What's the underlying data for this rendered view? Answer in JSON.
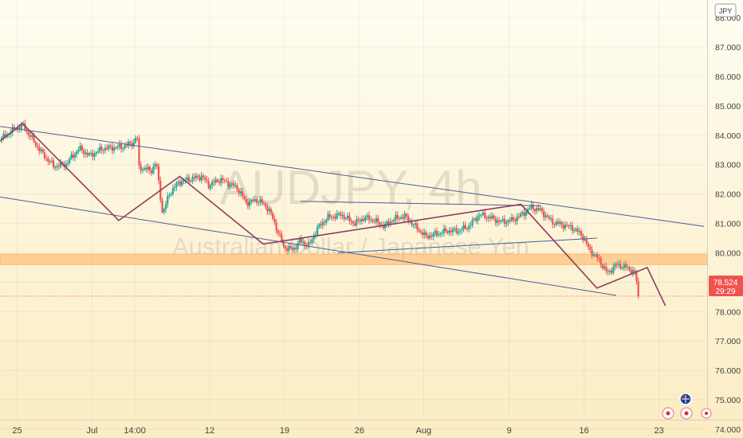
{
  "watermark": {
    "symbol": "AUDJPY, 4h",
    "name": "Australian Dollar / Japanese Yen"
  },
  "currency_badge": "JPY",
  "price": {
    "value": "78.524",
    "countdown": "29:29"
  },
  "colors": {
    "bg_top": "#fffdf2",
    "bg_bottom": "#fbecc2",
    "up": "#26a69a",
    "down": "#ef5350",
    "trend_line": "#4a5d9a",
    "zigzag": "#8e3d63",
    "zone": "#ffb060",
    "price_badge": "#ef5350"
  },
  "chart_data": {
    "type": "candlestick",
    "symbol": "AUDJPY",
    "timeframe": "4h",
    "ylim": [
      73.7,
      88.6
    ],
    "y_ticks": [
      "74.000",
      "75.000",
      "76.000",
      "77.000",
      "78.000",
      "79.000",
      "80.000",
      "81.000",
      "82.000",
      "83.000",
      "84.000",
      "85.000",
      "86.000",
      "87.000",
      "88.000"
    ],
    "x_ticks": [
      {
        "label": "25",
        "t": 25
      },
      {
        "label": "Jul",
        "t": 32
      },
      {
        "label": "14:00",
        "t": 36
      },
      {
        "label": "12",
        "t": 43
      },
      {
        "label": "19",
        "t": 50
      },
      {
        "label": "26",
        "t": 57
      },
      {
        "label": "Aug",
        "t": 63
      },
      {
        "label": "9",
        "t": 71
      },
      {
        "label": "16",
        "t": 78
      },
      {
        "label": "23",
        "t": 85
      }
    ],
    "x_range": [
      23.4,
      89.5
    ],
    "support_zone": [
      79.6,
      79.95
    ],
    "last_price": 78.524,
    "lines": [
      {
        "name": "channel-upper",
        "points": [
          [
            23.4,
            84.3
          ],
          [
            89.2,
            80.9
          ]
        ]
      },
      {
        "name": "channel-lower",
        "points": [
          [
            23.4,
            81.9
          ],
          [
            81.0,
            78.55
          ]
        ]
      },
      {
        "name": "flat-line",
        "points": [
          [
            51.5,
            81.75
          ],
          [
            74.0,
            81.6
          ]
        ]
      },
      {
        "name": "rising-line",
        "points": [
          [
            55.0,
            80.0
          ],
          [
            79.2,
            80.5
          ]
        ]
      }
    ],
    "zigzag": [
      [
        23.4,
        83.8
      ],
      [
        25.5,
        84.4
      ],
      [
        34.5,
        81.1
      ],
      [
        40.2,
        82.6
      ],
      [
        48.0,
        80.3
      ],
      [
        72.1,
        81.65
      ],
      [
        79.2,
        78.8
      ],
      [
        83.9,
        79.5
      ],
      [
        85.6,
        78.2
      ]
    ],
    "candle_anchors": [
      [
        23.4,
        83.85
      ],
      [
        24.5,
        84.15
      ],
      [
        25.5,
        84.35
      ],
      [
        27.3,
        83.4
      ],
      [
        28.4,
        82.95
      ],
      [
        29.5,
        83.0
      ],
      [
        30.8,
        83.55
      ],
      [
        31.8,
        83.3
      ],
      [
        33.0,
        83.55
      ],
      [
        34.8,
        83.6
      ],
      [
        35.9,
        83.75
      ],
      [
        36.2,
        84.05
      ],
      [
        36.4,
        82.9
      ],
      [
        37.6,
        82.8
      ],
      [
        38.0,
        83.1
      ],
      [
        38.6,
        81.3
      ],
      [
        39.2,
        82.0
      ],
      [
        40.1,
        82.4
      ],
      [
        41.0,
        82.5
      ],
      [
        42.3,
        82.6
      ],
      [
        42.9,
        82.3
      ],
      [
        44.0,
        82.5
      ],
      [
        45.6,
        82.2
      ],
      [
        46.4,
        81.7
      ],
      [
        47.5,
        81.8
      ],
      [
        48.5,
        81.5
      ],
      [
        49.3,
        80.8
      ],
      [
        49.9,
        80.2
      ],
      [
        50.8,
        80.1
      ],
      [
        51.4,
        80.4
      ],
      [
        52.3,
        80.25
      ],
      [
        53.0,
        80.8
      ],
      [
        54.0,
        81.2
      ],
      [
        55.3,
        81.3
      ],
      [
        56.5,
        81.0
      ],
      [
        57.5,
        81.2
      ],
      [
        58.4,
        81.1
      ],
      [
        59.3,
        80.9
      ],
      [
        60.2,
        81.15
      ],
      [
        61.2,
        81.25
      ],
      [
        62.2,
        80.9
      ],
      [
        63.2,
        80.55
      ],
      [
        64.2,
        80.65
      ],
      [
        65.2,
        80.75
      ],
      [
        66.2,
        80.75
      ],
      [
        67.2,
        80.9
      ],
      [
        68.2,
        81.3
      ],
      [
        69.2,
        81.2
      ],
      [
        70.2,
        81.05
      ],
      [
        71.2,
        81.1
      ],
      [
        72.2,
        81.3
      ],
      [
        73.0,
        81.55
      ],
      [
        73.9,
        81.45
      ],
      [
        75.0,
        81.05
      ],
      [
        76.0,
        80.95
      ],
      [
        76.9,
        80.85
      ],
      [
        77.8,
        80.6
      ],
      [
        78.5,
        80.1
      ],
      [
        79.3,
        79.8
      ],
      [
        80.2,
        79.3
      ],
      [
        81.0,
        79.6
      ],
      [
        82.0,
        79.5
      ],
      [
        82.8,
        79.3
      ],
      [
        83.1,
        78.52
      ]
    ]
  }
}
